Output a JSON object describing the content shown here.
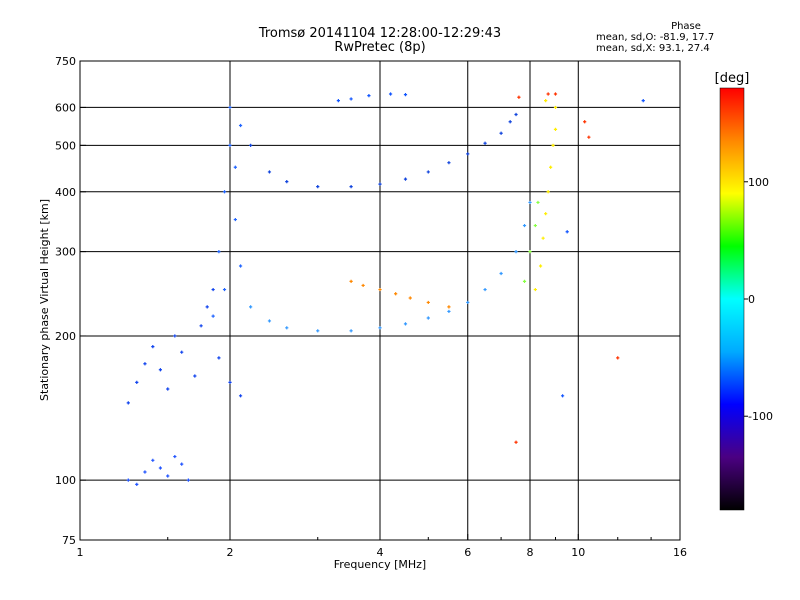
{
  "header": {
    "title_line1": "Tromsø 20141104 12:28:00-12:29:43",
    "title_line2": "RwPretec (8p)"
  },
  "phase_info": {
    "label": "Phase",
    "o_line": "mean, sd,O: -81.9, 17.7",
    "x_line": "mean, sd,X:  93.1, 27.4"
  },
  "colorbar": {
    "unit_label": "[deg]",
    "ticks": [
      {
        "value": 100,
        "label": "100"
      },
      {
        "value": 0,
        "label": "0"
      },
      {
        "value": -100,
        "label": "-100"
      }
    ],
    "range": [
      -180,
      180
    ],
    "colors": [
      "#000000",
      "#4b0082",
      "#0000ff",
      "#00aaff",
      "#00ffff",
      "#00ff00",
      "#ffff00",
      "#ff8800",
      "#ff0000"
    ]
  },
  "chart_data": {
    "type": "scatter",
    "xlabel": "Frequency [MHz]",
    "ylabel": "Stationary phase Virtual Height [km]",
    "x_scale": "log",
    "y_scale": "log",
    "xlim": [
      1,
      16
    ],
    "ylim": [
      75,
      750
    ],
    "x_ticks": [
      1,
      2,
      4,
      6,
      8,
      10,
      16
    ],
    "y_ticks": [
      75,
      100,
      200,
      300,
      400,
      500,
      600,
      750
    ],
    "grid_x": [
      2,
      4,
      6,
      8,
      10
    ],
    "grid_y": [
      100,
      200,
      300,
      400,
      500,
      600
    ],
    "point_color_scale": "phase [deg]",
    "series": [
      {
        "color": "#2255ff",
        "points": [
          [
            1.25,
            100
          ],
          [
            1.3,
            98
          ],
          [
            1.35,
            104
          ],
          [
            1.4,
            110
          ],
          [
            1.45,
            106
          ],
          [
            1.5,
            102
          ],
          [
            1.55,
            112
          ],
          [
            1.6,
            108
          ],
          [
            1.65,
            100
          ]
        ]
      },
      {
        "color": "#1144ee",
        "points": [
          [
            1.25,
            145
          ],
          [
            1.3,
            160
          ],
          [
            1.35,
            175
          ],
          [
            1.4,
            190
          ],
          [
            1.45,
            170
          ],
          [
            1.5,
            155
          ],
          [
            1.55,
            200
          ],
          [
            1.6,
            185
          ],
          [
            1.7,
            165
          ],
          [
            1.75,
            210
          ],
          [
            1.8,
            230
          ],
          [
            1.85,
            250
          ],
          [
            1.9,
            180
          ],
          [
            2.0,
            160
          ],
          [
            2.1,
            150
          ]
        ]
      },
      {
        "color": "#2266ff",
        "points": [
          [
            1.9,
            300
          ],
          [
            1.95,
            400
          ],
          [
            2.0,
            500
          ],
          [
            2.0,
            600
          ],
          [
            2.05,
            350
          ],
          [
            2.1,
            280
          ],
          [
            1.95,
            250
          ],
          [
            1.85,
            220
          ],
          [
            2.05,
            450
          ],
          [
            2.1,
            550
          ]
        ]
      },
      {
        "color": "#1144dd",
        "points": [
          [
            2.2,
            500
          ],
          [
            2.4,
            440
          ],
          [
            2.6,
            420
          ],
          [
            3.0,
            410
          ],
          [
            3.5,
            410
          ],
          [
            4.0,
            415
          ],
          [
            4.5,
            425
          ],
          [
            5.0,
            440
          ],
          [
            5.5,
            460
          ],
          [
            6.0,
            480
          ],
          [
            6.5,
            505
          ],
          [
            7.0,
            530
          ],
          [
            7.3,
            560
          ],
          [
            7.5,
            580
          ]
        ]
      },
      {
        "color": "#3399ff",
        "points": [
          [
            2.2,
            230
          ],
          [
            2.4,
            215
          ],
          [
            2.6,
            208
          ],
          [
            3.0,
            205
          ],
          [
            3.5,
            205
          ],
          [
            4.0,
            208
          ],
          [
            4.5,
            212
          ],
          [
            5.0,
            218
          ],
          [
            5.5,
            225
          ],
          [
            6.0,
            235
          ],
          [
            6.5,
            250
          ],
          [
            7.0,
            270
          ],
          [
            7.5,
            300
          ],
          [
            7.8,
            340
          ],
          [
            8.0,
            380
          ]
        ]
      },
      {
        "color": "#ff8800",
        "points": [
          [
            3.5,
            260
          ],
          [
            3.7,
            255
          ],
          [
            4.0,
            250
          ],
          [
            4.3,
            245
          ],
          [
            4.6,
            240
          ],
          [
            5.0,
            235
          ],
          [
            5.5,
            230
          ]
        ]
      },
      {
        "color": "#ffee00",
        "points": [
          [
            8.2,
            250
          ],
          [
            8.4,
            280
          ],
          [
            8.5,
            320
          ],
          [
            8.6,
            360
          ],
          [
            8.7,
            400
          ],
          [
            8.8,
            450
          ],
          [
            8.9,
            500
          ],
          [
            9.0,
            540
          ],
          [
            9.0,
            600
          ],
          [
            8.6,
            620
          ]
        ]
      },
      {
        "color": "#88ff44",
        "points": [
          [
            7.8,
            260
          ],
          [
            8.0,
            300
          ],
          [
            8.2,
            340
          ],
          [
            8.3,
            380
          ]
        ]
      },
      {
        "color": "#1155ff",
        "points": [
          [
            3.3,
            620
          ],
          [
            3.5,
            625
          ],
          [
            3.8,
            635
          ],
          [
            4.2,
            640
          ],
          [
            4.5,
            638
          ],
          [
            9.5,
            330
          ],
          [
            9.3,
            150
          ],
          [
            13.5,
            620
          ]
        ]
      },
      {
        "color": "#ff3300",
        "points": [
          [
            7.5,
            120
          ],
          [
            8.7,
            640
          ],
          [
            7.6,
            630
          ],
          [
            9.0,
            640
          ],
          [
            10.3,
            560
          ],
          [
            10.5,
            520
          ],
          [
            12.0,
            180
          ]
        ]
      }
    ]
  }
}
